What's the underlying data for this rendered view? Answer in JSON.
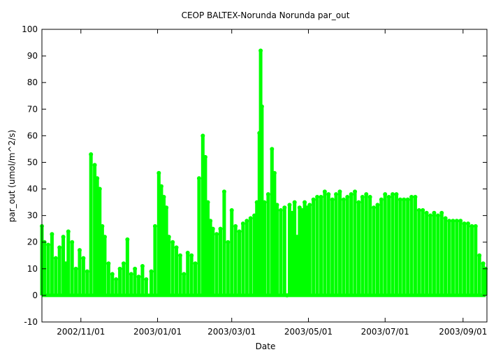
{
  "chart_data": {
    "type": "scatter",
    "title": "CEOP BALTEX-Norunda Norunda  par_out",
    "xlabel": "Date",
    "ylabel": "par_out (umol/m^2/s)",
    "ylim": [
      -10,
      100
    ],
    "xlim": [
      "2002-10-01",
      "2003-09-20"
    ],
    "y_ticks": [
      -10,
      0,
      10,
      20,
      30,
      40,
      50,
      60,
      70,
      80,
      90,
      100
    ],
    "x_ticks": [
      {
        "date": "2002-11-01",
        "label": "2002/11/01"
      },
      {
        "date": "2003-01-01",
        "label": "2003/01/01"
      },
      {
        "date": "2003-03-01",
        "label": "2003/03/01"
      },
      {
        "date": "2003-05-01",
        "label": "2003/05/01"
      },
      {
        "date": "2003-07-01",
        "label": "2003/07/01"
      },
      {
        "date": "2003-09-01",
        "label": "2003/09/01"
      }
    ],
    "grid": false,
    "series": [
      {
        "color": "#00ff00",
        "style": "points-and-lines",
        "x": [
          "2002-10-01",
          "2002-10-03",
          "2002-10-06",
          "2002-10-09",
          "2002-10-12",
          "2002-10-15",
          "2002-10-18",
          "2002-10-20",
          "2002-10-22",
          "2002-10-25",
          "2002-10-28",
          "2002-10-31",
          "2002-11-03",
          "2002-11-06",
          "2002-11-09",
          "2002-11-12",
          "2002-11-14",
          "2002-11-16",
          "2002-11-18",
          "2002-11-20",
          "2002-11-23",
          "2002-11-26",
          "2002-11-29",
          "2002-12-02",
          "2002-12-05",
          "2002-12-08",
          "2002-12-11",
          "2002-12-14",
          "2002-12-17",
          "2002-12-20",
          "2002-12-23",
          "2002-12-27",
          "2002-12-30",
          "2003-01-02",
          "2003-01-04",
          "2003-01-06",
          "2003-01-08",
          "2003-01-10",
          "2003-01-13",
          "2003-01-16",
          "2003-01-19",
          "2003-01-22",
          "2003-01-25",
          "2003-01-28",
          "2003-01-31",
          "2003-02-03",
          "2003-02-06",
          "2003-02-08",
          "2003-02-10",
          "2003-02-12",
          "2003-02-14",
          "2003-02-17",
          "2003-02-20",
          "2003-02-23",
          "2003-02-26",
          "2003-03-01",
          "2003-03-04",
          "2003-03-07",
          "2003-03-10",
          "2003-03-13",
          "2003-03-16",
          "2003-03-19",
          "2003-03-21",
          "2003-03-23",
          "2003-03-24",
          "2003-03-25",
          "2003-03-27",
          "2003-03-30",
          "2003-04-02",
          "2003-04-04",
          "2003-04-06",
          "2003-04-09",
          "2003-04-12",
          "2003-04-14",
          "2003-04-16",
          "2003-04-18",
          "2003-04-20",
          "2003-04-22",
          "2003-04-24",
          "2003-04-26",
          "2003-04-28",
          "2003-04-30",
          "2003-05-02",
          "2003-05-05",
          "2003-05-08",
          "2003-05-11",
          "2003-05-14",
          "2003-05-17",
          "2003-05-20",
          "2003-05-23",
          "2003-05-26",
          "2003-05-29",
          "2003-06-01",
          "2003-06-04",
          "2003-06-07",
          "2003-06-10",
          "2003-06-13",
          "2003-06-16",
          "2003-06-19",
          "2003-06-22",
          "2003-06-25",
          "2003-06-28",
          "2003-07-01",
          "2003-07-04",
          "2003-07-07",
          "2003-07-10",
          "2003-07-13",
          "2003-07-16",
          "2003-07-19",
          "2003-07-22",
          "2003-07-25",
          "2003-07-28",
          "2003-07-31",
          "2003-08-03",
          "2003-08-06",
          "2003-08-09",
          "2003-08-12",
          "2003-08-15",
          "2003-08-18",
          "2003-08-21",
          "2003-08-24",
          "2003-08-27",
          "2003-08-30",
          "2003-09-02",
          "2003-09-05",
          "2003-09-08",
          "2003-09-11",
          "2003-09-14",
          "2003-09-17",
          "2003-09-19"
        ],
        "y": [
          26,
          20,
          19,
          23,
          14,
          18,
          22,
          12,
          24,
          20,
          10,
          17,
          14,
          9,
          53,
          49,
          44,
          40,
          26,
          22,
          12,
          8,
          6,
          10,
          12,
          21,
          8,
          10,
          7,
          11,
          6,
          9,
          26,
          46,
          41,
          37,
          33,
          22,
          20,
          18,
          15,
          8,
          16,
          15,
          12,
          44,
          60,
          52,
          35,
          28,
          25,
          23,
          25,
          39,
          20,
          32,
          26,
          24,
          27,
          28,
          29,
          30,
          35,
          61,
          92,
          71,
          35,
          38,
          55,
          46,
          34,
          32,
          33,
          0,
          34,
          31,
          35,
          22,
          33,
          32,
          35,
          33,
          34,
          36,
          37,
          37,
          39,
          38,
          36,
          38,
          39,
          36,
          37,
          38,
          39,
          35,
          37,
          38,
          37,
          33,
          34,
          36,
          38,
          37,
          38,
          38,
          36,
          36,
          36,
          37,
          37,
          32,
          32,
          31,
          30,
          31,
          30,
          31,
          29,
          28,
          28,
          28,
          28,
          27,
          27,
          26,
          26,
          15,
          12,
          10
        ]
      }
    ]
  }
}
